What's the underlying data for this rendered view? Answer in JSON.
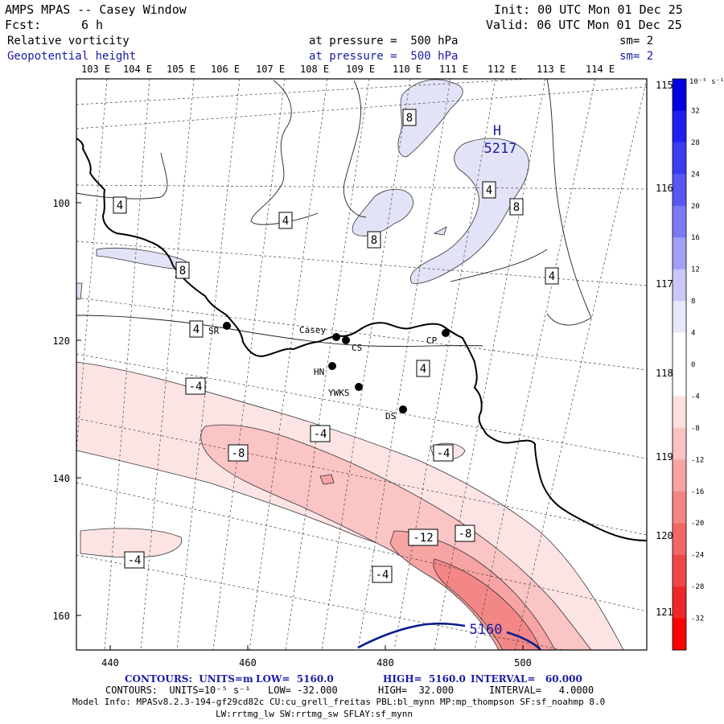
{
  "header": {
    "model_title": "AMPS MPAS -- Casey Window",
    "fcst_label": "Fcst:",
    "fcst_value": "6 h",
    "init": "Init: 00 UTC Mon 01 Dec 25",
    "valid": "Valid: 06 UTC Mon 01 Dec 25",
    "field1_name": "Relative vorticity",
    "field1_level": "at pressure =  500 hPa",
    "field1_sm": "sm= 2",
    "field2_name": "Geopotential height",
    "field2_level": "at pressure =  500 hPa",
    "field2_sm": "sm= 2"
  },
  "chart_data": {
    "type": "heatmap",
    "description_fields": [
      "Relative vorticity (shaded, 10^-5 s^-1)",
      "Geopotential height (contours, m)"
    ],
    "x_ticks": [
      "440",
      "460",
      "480",
      "500"
    ],
    "y_ticks": [
      "100",
      "120",
      "140",
      "160"
    ],
    "lon_labels_top": [
      "103 E",
      "104 E",
      "105 E",
      "106 E",
      "107 E",
      "108 E",
      "109 E",
      "110 E",
      "111 E",
      "112 E",
      "113 E",
      "114 E"
    ],
    "lon_labels_right": [
      "115 E",
      "116 E",
      "117 E",
      "118 E",
      "119 E",
      "120 E",
      "121 E"
    ],
    "colorbar": {
      "unit": "10⁻⁵ s⁻¹",
      "levels": [
        "32",
        "28",
        "24",
        "20",
        "16",
        "12",
        "8",
        "4",
        "0",
        "-4",
        "-8",
        "-12",
        "-16",
        "-20",
        "-24",
        "-28",
        "-32"
      ],
      "colors": [
        "#0000e0",
        "#1f1fee",
        "#3b3bf2",
        "#5757f3",
        "#7a7af5",
        "#a0a0f6",
        "#c7c7f8",
        "#e8e8fb",
        "#ffffff",
        "#ffffff",
        "#fde0e0",
        "#fbc2c2",
        "#f8a3a3",
        "#f58585",
        "#f26666",
        "#f04646",
        "#ee2828",
        "#ff0000"
      ]
    },
    "contour_labels": [
      "4",
      "4",
      "4",
      "4",
      "4",
      "4",
      "8",
      "8",
      "8",
      "8",
      "-4",
      "-4",
      "-4",
      "-4",
      "-4",
      "-8",
      "-8",
      "-12"
    ],
    "height_contours": {
      "label": "5160",
      "high_label": "H",
      "high_value": "5217"
    },
    "stations": [
      {
        "name": "Casey"
      },
      {
        "name": "CS"
      },
      {
        "name": "SR"
      },
      {
        "name": "CP"
      },
      {
        "name": "HN"
      },
      {
        "name": "YWKS"
      },
      {
        "name": "DS"
      }
    ]
  },
  "footer": {
    "contours1_label": "CONTOURS:  UNITS=m",
    "contours1_low": "LOW=  5160.0",
    "contours1_high": "HIGH=  5160.0",
    "contours1_interval": "INTERVAL=   60.000",
    "contours2_label": "CONTOURS:  UNITS=10⁻⁵ s⁻¹",
    "contours2_low": "LOW= -32.000",
    "contours2_high": "HIGH=  32.000",
    "contours2_interval": "INTERVAL=   4.0000",
    "model_info": "Model Info: MPASv8.2.3-194-gf29cd82c CU:cu_grell_freitas PBL:bl_mynn MP:mp_thompson SF:sf_noahmp 8.0",
    "model_info2": "LW:rrtmg_lw SW:rrtmg_sw SFLAY:sf_mynn"
  }
}
